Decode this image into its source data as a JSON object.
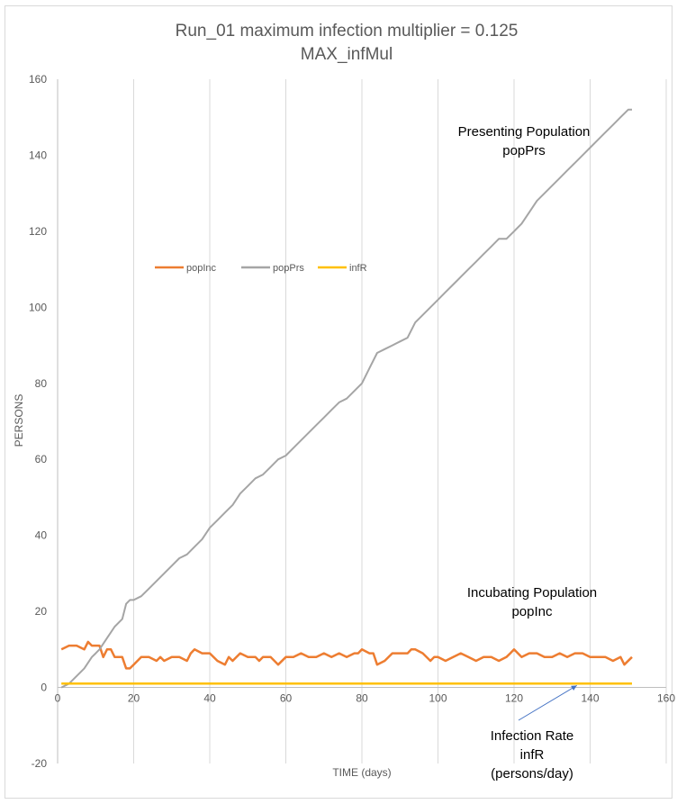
{
  "chart_data": {
    "type": "line",
    "title": "Run_01 maximum infection multiplier = 0.125",
    "subtitle": "MAX_infMul",
    "xlabel": "TIME (days)",
    "ylabel": "PERSONS",
    "xlim": [
      0,
      160
    ],
    "ylim": [
      -20,
      160
    ],
    "x_ticks": [
      "0",
      "20",
      "40",
      "60",
      "80",
      "100",
      "120",
      "140",
      "160"
    ],
    "y_ticks": [
      "-20",
      "0",
      "20",
      "40",
      "60",
      "80",
      "100",
      "120",
      "140",
      "160"
    ],
    "grid": "vertical",
    "legend_position": "middle-left",
    "series": [
      {
        "name": "popInc",
        "color": "#ed7d31",
        "x": [
          1,
          3,
          5,
          7,
          8,
          9,
          10,
          11,
          12,
          13,
          14,
          15,
          16,
          17,
          18,
          19,
          20,
          22,
          24,
          26,
          27,
          28,
          30,
          32,
          34,
          35,
          36,
          38,
          40,
          41,
          42,
          44,
          45,
          46,
          48,
          50,
          52,
          53,
          54,
          56,
          58,
          60,
          62,
          64,
          66,
          68,
          70,
          72,
          74,
          76,
          78,
          79,
          80,
          82,
          83,
          84,
          86,
          88,
          90,
          92,
          93,
          94,
          96,
          98,
          99,
          100,
          102,
          104,
          106,
          108,
          110,
          112,
          114,
          116,
          118,
          119,
          120,
          122,
          124,
          126,
          128,
          130,
          132,
          134,
          136,
          138,
          140,
          142,
          144,
          146,
          148,
          149,
          151
        ],
        "values": [
          10,
          11,
          11,
          10,
          12,
          11,
          11,
          11,
          8,
          10,
          10,
          8,
          8,
          8,
          5,
          5,
          6,
          8,
          8,
          7,
          8,
          7,
          8,
          8,
          7,
          9,
          10,
          9,
          9,
          8,
          7,
          6,
          8,
          7,
          9,
          8,
          8,
          7,
          8,
          8,
          6,
          8,
          8,
          9,
          8,
          8,
          9,
          8,
          9,
          8,
          9,
          9,
          10,
          9,
          9,
          6,
          7,
          9,
          9,
          9,
          10,
          10,
          9,
          7,
          8,
          8,
          7,
          8,
          9,
          8,
          7,
          8,
          8,
          7,
          8,
          9,
          10,
          8,
          9,
          9,
          8,
          8,
          9,
          8,
          9,
          9,
          8,
          8,
          8,
          7,
          8,
          6,
          8
        ]
      },
      {
        "name": "popPrs",
        "color": "#a5a5a5",
        "x": [
          1,
          3,
          5,
          7,
          9,
          10,
          11,
          13,
          15,
          17,
          18,
          19,
          20,
          22,
          24,
          26,
          28,
          30,
          32,
          34,
          36,
          38,
          40,
          42,
          44,
          46,
          48,
          50,
          52,
          54,
          56,
          58,
          60,
          62,
          64,
          66,
          68,
          70,
          72,
          74,
          76,
          78,
          80,
          82,
          84,
          86,
          88,
          90,
          92,
          94,
          96,
          98,
          100,
          102,
          104,
          106,
          108,
          110,
          112,
          114,
          116,
          118,
          120,
          122,
          124,
          126,
          128,
          130,
          132,
          134,
          136,
          138,
          140,
          142,
          144,
          146,
          148,
          150,
          151
        ],
        "values": [
          0,
          1,
          3,
          5,
          8,
          9,
          10,
          13,
          16,
          18,
          22,
          23,
          23,
          24,
          26,
          28,
          30,
          32,
          34,
          35,
          37,
          39,
          42,
          44,
          46,
          48,
          51,
          53,
          55,
          56,
          58,
          60,
          61,
          63,
          65,
          67,
          69,
          71,
          73,
          75,
          76,
          78,
          80,
          84,
          88,
          89,
          90,
          91,
          92,
          96,
          98,
          100,
          102,
          104,
          106,
          108,
          110,
          112,
          114,
          116,
          118,
          118,
          120,
          122,
          125,
          128,
          130,
          132,
          134,
          136,
          138,
          140,
          142,
          144,
          146,
          148,
          150,
          152,
          152
        ]
      },
      {
        "name": "infR",
        "color": "#ffc000",
        "x": [
          1,
          151
        ],
        "values": [
          1,
          1
        ]
      }
    ],
    "annotations": [
      {
        "text": [
          "Presenting Population",
          "popPrs"
        ]
      },
      {
        "text": [
          "Incubating Population",
          "popInc"
        ]
      },
      {
        "text": [
          "Infection Rate",
          "infR",
          "(persons/day)"
        ]
      }
    ]
  }
}
